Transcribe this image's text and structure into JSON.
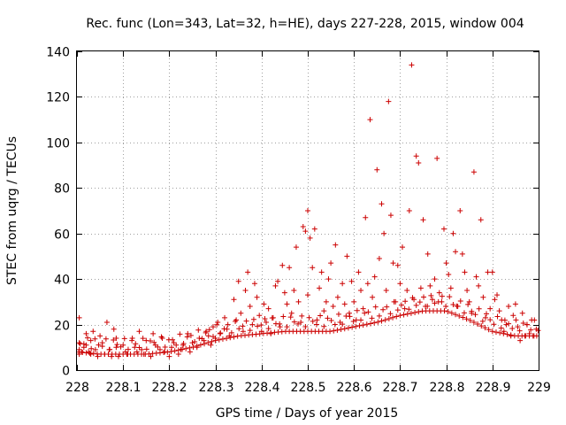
{
  "chart_data": {
    "type": "scatter",
    "title": "Rec. func (Lon=343, Lat=32, h=HE), days 227-228, 2015, window 004",
    "xlabel": "GPS time / Days of year 2015",
    "ylabel": "STEC from uqrg / TECUs",
    "xlim": [
      228,
      229
    ],
    "ylim": [
      0,
      140
    ],
    "xticks": [
      "228",
      "228.1",
      "228.2",
      "228.3",
      "228.4",
      "228.5",
      "228.6",
      "228.7",
      "228.8",
      "228.9",
      "229"
    ],
    "yticks": [
      "0",
      "20",
      "40",
      "60",
      "80",
      "100",
      "120",
      "140"
    ],
    "grid": true,
    "marker": "+",
    "color": "#cc0000",
    "points": [
      [
        228.005,
        23
      ],
      [
        228.005,
        12
      ],
      [
        228.005,
        9
      ],
      [
        228.005,
        7
      ],
      [
        228.01,
        8
      ],
      [
        228.015,
        10
      ],
      [
        228.02,
        16
      ],
      [
        228.02,
        11
      ],
      [
        228.025,
        8
      ],
      [
        228.03,
        7
      ],
      [
        228.03,
        13
      ],
      [
        228.035,
        17
      ],
      [
        228.04,
        9
      ],
      [
        228.045,
        6
      ],
      [
        228.05,
        15
      ],
      [
        228.055,
        12
      ],
      [
        228.06,
        7
      ],
      [
        228.065,
        21
      ],
      [
        228.07,
        9
      ],
      [
        228.075,
        6
      ],
      [
        228.08,
        18
      ],
      [
        228.085,
        14
      ],
      [
        228.085,
        10
      ],
      [
        228.09,
        6
      ],
      [
        228.1,
        11
      ],
      [
        228.105,
        8
      ],
      [
        228.11,
        7
      ],
      [
        228.12,
        14
      ],
      [
        228.125,
        10
      ],
      [
        228.13,
        8
      ],
      [
        228.135,
        17
      ],
      [
        228.14,
        9
      ],
      [
        228.145,
        7
      ],
      [
        228.15,
        13
      ],
      [
        228.16,
        6
      ],
      [
        228.165,
        16
      ],
      [
        228.17,
        11
      ],
      [
        228.18,
        9
      ],
      [
        228.185,
        14
      ],
      [
        228.19,
        8
      ],
      [
        228.2,
        6
      ],
      [
        228.205,
        10
      ],
      [
        228.21,
        12
      ],
      [
        228.22,
        7
      ],
      [
        228.225,
        9
      ],
      [
        228.23,
        11
      ],
      [
        228.24,
        16
      ],
      [
        228.245,
        8
      ],
      [
        228.25,
        12
      ],
      [
        228.26,
        10
      ],
      [
        228.265,
        14
      ],
      [
        228.275,
        13
      ],
      [
        228.28,
        17
      ],
      [
        228.285,
        15
      ],
      [
        228.29,
        11
      ],
      [
        228.295,
        19
      ],
      [
        228.3,
        14
      ],
      [
        228.305,
        21
      ],
      [
        228.31,
        16
      ],
      [
        228.32,
        23
      ],
      [
        228.325,
        18
      ],
      [
        228.33,
        15
      ],
      [
        228.34,
        31
      ],
      [
        228.345,
        22
      ],
      [
        228.35,
        39
      ],
      [
        228.355,
        25
      ],
      [
        228.36,
        17
      ],
      [
        228.365,
        35
      ],
      [
        228.37,
        43
      ],
      [
        228.375,
        28
      ],
      [
        228.38,
        20
      ],
      [
        228.385,
        38
      ],
      [
        228.39,
        32
      ],
      [
        228.395,
        24
      ],
      [
        228.4,
        17
      ],
      [
        228.405,
        29
      ],
      [
        228.41,
        21
      ],
      [
        228.415,
        27
      ],
      [
        228.42,
        16
      ],
      [
        228.425,
        23
      ],
      [
        228.43,
        37
      ],
      [
        228.435,
        39
      ],
      [
        228.44,
        19
      ],
      [
        228.445,
        46
      ],
      [
        228.45,
        34
      ],
      [
        228.455,
        29
      ],
      [
        228.46,
        45
      ],
      [
        228.465,
        25
      ],
      [
        228.47,
        35
      ],
      [
        228.475,
        54
      ],
      [
        228.48,
        30
      ],
      [
        228.485,
        21
      ],
      [
        228.49,
        63
      ],
      [
        228.495,
        61
      ],
      [
        228.5,
        70
      ],
      [
        228.5,
        33
      ],
      [
        228.505,
        58
      ],
      [
        228.51,
        45
      ],
      [
        228.515,
        62
      ],
      [
        228.52,
        22
      ],
      [
        228.525,
        36
      ],
      [
        228.53,
        43
      ],
      [
        228.535,
        26
      ],
      [
        228.54,
        30
      ],
      [
        228.545,
        40
      ],
      [
        228.55,
        47
      ],
      [
        228.555,
        28
      ],
      [
        228.56,
        55
      ],
      [
        228.565,
        32
      ],
      [
        228.57,
        21
      ],
      [
        228.575,
        38
      ],
      [
        228.58,
        29
      ],
      [
        228.585,
        50
      ],
      [
        228.59,
        25
      ],
      [
        228.595,
        39
      ],
      [
        228.6,
        30
      ],
      [
        228.605,
        22
      ],
      [
        228.61,
        43
      ],
      [
        228.615,
        35
      ],
      [
        228.62,
        27
      ],
      [
        228.625,
        67
      ],
      [
        228.63,
        38
      ],
      [
        228.635,
        110
      ],
      [
        228.64,
        32
      ],
      [
        228.645,
        41
      ],
      [
        228.65,
        88
      ],
      [
        228.655,
        49
      ],
      [
        228.66,
        73
      ],
      [
        228.665,
        60
      ],
      [
        228.67,
        35
      ],
      [
        228.675,
        118
      ],
      [
        228.68,
        68
      ],
      [
        228.685,
        47
      ],
      [
        228.69,
        30
      ],
      [
        228.695,
        46
      ],
      [
        228.7,
        38
      ],
      [
        228.705,
        54
      ],
      [
        228.71,
        27
      ],
      [
        228.715,
        35
      ],
      [
        228.72,
        70
      ],
      [
        228.725,
        134
      ],
      [
        228.73,
        31
      ],
      [
        228.735,
        94
      ],
      [
        228.74,
        91
      ],
      [
        228.745,
        36
      ],
      [
        228.75,
        66
      ],
      [
        228.755,
        28
      ],
      [
        228.76,
        51
      ],
      [
        228.765,
        37
      ],
      [
        228.77,
        31
      ],
      [
        228.775,
        40
      ],
      [
        228.78,
        93
      ],
      [
        228.785,
        34
      ],
      [
        228.79,
        30
      ],
      [
        228.795,
        62
      ],
      [
        228.8,
        47
      ],
      [
        228.805,
        42
      ],
      [
        228.81,
        36
      ],
      [
        228.815,
        60
      ],
      [
        228.82,
        52
      ],
      [
        228.825,
        28
      ],
      [
        228.83,
        70
      ],
      [
        228.835,
        51
      ],
      [
        228.84,
        43
      ],
      [
        228.845,
        35
      ],
      [
        228.85,
        30
      ],
      [
        228.855,
        25
      ],
      [
        228.86,
        87
      ],
      [
        228.865,
        41
      ],
      [
        228.87,
        37
      ],
      [
        228.875,
        66
      ],
      [
        228.88,
        32
      ],
      [
        228.885,
        23
      ],
      [
        228.89,
        43
      ],
      [
        228.895,
        27
      ],
      [
        228.9,
        43
      ],
      [
        228.905,
        31
      ],
      [
        228.91,
        33
      ],
      [
        228.915,
        26
      ],
      [
        228.92,
        22
      ],
      [
        228.925,
        17
      ],
      [
        228.93,
        20
      ],
      [
        228.935,
        28
      ],
      [
        228.94,
        15
      ],
      [
        228.945,
        24
      ],
      [
        228.95,
        29
      ],
      [
        228.955,
        19
      ],
      [
        228.96,
        13
      ],
      [
        228.965,
        25
      ],
      [
        228.97,
        15
      ],
      [
        228.975,
        20
      ],
      [
        228.98,
        16
      ],
      [
        228.985,
        22
      ],
      [
        228.99,
        15
      ],
      [
        228.995,
        18
      ]
    ],
    "baseline": [
      [
        228.0,
        8
      ],
      [
        228.05,
        7
      ],
      [
        228.1,
        7
      ],
      [
        228.15,
        7
      ],
      [
        228.2,
        8
      ],
      [
        228.25,
        10
      ],
      [
        228.3,
        13
      ],
      [
        228.35,
        15
      ],
      [
        228.4,
        16
      ],
      [
        228.45,
        17
      ],
      [
        228.5,
        17
      ],
      [
        228.55,
        17
      ],
      [
        228.6,
        19
      ],
      [
        228.65,
        21
      ],
      [
        228.7,
        24
      ],
      [
        228.75,
        26
      ],
      [
        228.8,
        26
      ],
      [
        228.85,
        22
      ],
      [
        228.9,
        17
      ],
      [
        228.95,
        15
      ],
      [
        229.0,
        15
      ]
    ]
  }
}
